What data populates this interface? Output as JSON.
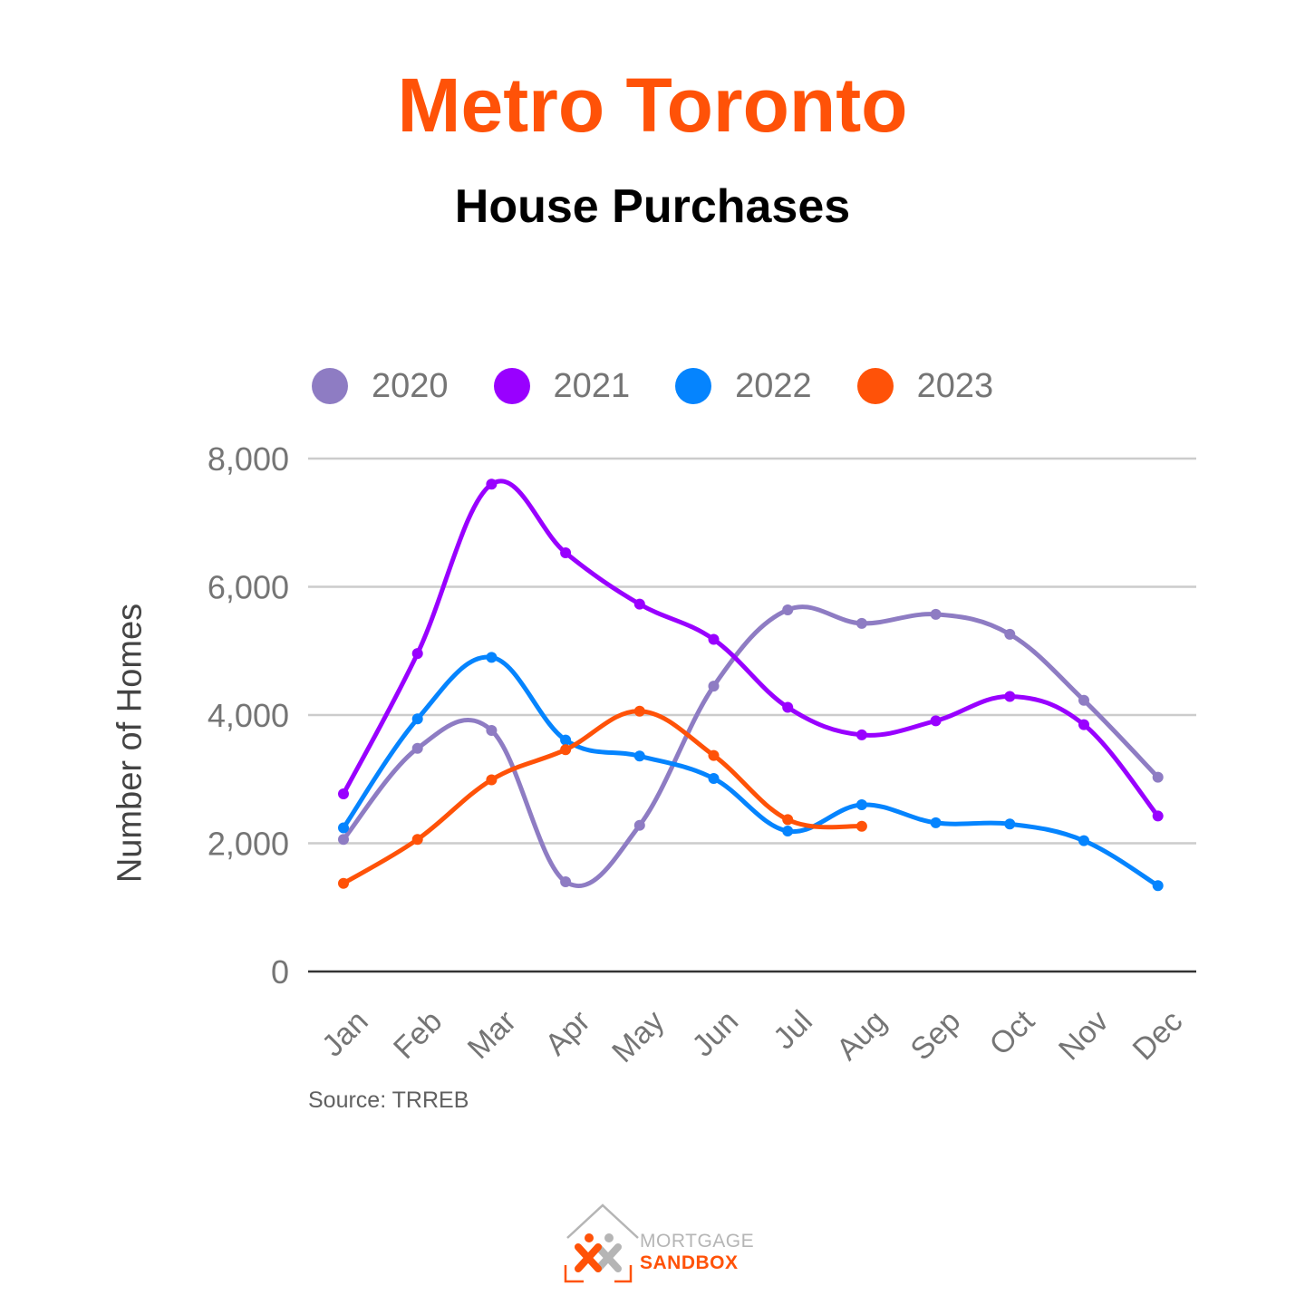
{
  "header": {
    "title": "Metro Toronto",
    "subtitle": "House Purchases"
  },
  "legend": [
    {
      "label": "2020",
      "color": "#8e7cc3"
    },
    {
      "label": "2021",
      "color": "#9900ff"
    },
    {
      "label": "2022",
      "color": "#0584fe"
    },
    {
      "label": "2023",
      "color": "#ff5208"
    }
  ],
  "axes": {
    "y_title": "Number of Homes",
    "y_ticks": [
      "0",
      "2,000",
      "4,000",
      "6,000",
      "8,000"
    ],
    "x_ticks": [
      "Jan",
      "Feb",
      "Mar",
      "Apr",
      "May",
      "Jun",
      "Jul",
      "Aug",
      "Sep",
      "Oct",
      "Nov",
      "Dec"
    ]
  },
  "footer": {
    "source": "Source: TRREB",
    "logo_top": "MORTGAGE",
    "logo_bottom": "SANDBOX"
  },
  "chart_data": {
    "type": "line",
    "title": "Metro Toronto",
    "subtitle": "House Purchases",
    "xlabel": "",
    "ylabel": "Number of Homes",
    "ylim": [
      0,
      8000
    ],
    "y_ticks": [
      0,
      2000,
      4000,
      6000,
      8000
    ],
    "grid": true,
    "legend_position": "top",
    "categories": [
      "Jan",
      "Feb",
      "Mar",
      "Apr",
      "May",
      "Jun",
      "Jul",
      "Aug",
      "Sep",
      "Oct",
      "Nov",
      "Dec"
    ],
    "series": [
      {
        "name": "2020",
        "color": "#8e7cc3",
        "values": [
          2060,
          3480,
          3760,
          1400,
          2280,
          4450,
          5640,
          5430,
          5570,
          5260,
          4230,
          3030
        ]
      },
      {
        "name": "2021",
        "color": "#9900ff",
        "values": [
          2770,
          4960,
          7600,
          6530,
          5730,
          5180,
          4120,
          3690,
          3910,
          4290,
          3850,
          2425
        ]
      },
      {
        "name": "2022",
        "color": "#0584fe",
        "values": [
          2240,
          3940,
          4900,
          3610,
          3360,
          3010,
          2190,
          2600,
          2320,
          2300,
          2040,
          1340
        ]
      },
      {
        "name": "2023",
        "color": "#ff5208",
        "values": [
          1375,
          2060,
          2990,
          3460,
          4060,
          3370,
          2370,
          2265
        ]
      }
    ],
    "annotations": [
      "Source: TRREB"
    ]
  }
}
